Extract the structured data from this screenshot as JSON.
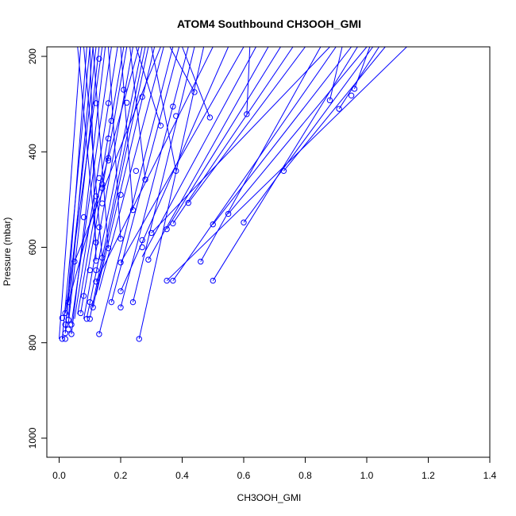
{
  "chart_data": {
    "type": "line",
    "title": "ATOM4 Southbound CH3OOH_GMI",
    "xlabel": "CH3OOH_GMI",
    "ylabel": "Pressure (mbar)",
    "xlim": [
      -0.04,
      1.4
    ],
    "ylim": [
      1040,
      180
    ],
    "y_reversed": true,
    "xticks": [
      "0.0",
      "0.2",
      "0.4",
      "0.6",
      "0.8",
      "1.0",
      "1.2",
      "1.4"
    ],
    "yticks": [
      "200",
      "400",
      "600",
      "800",
      "1000"
    ],
    "color": "#0000ff",
    "marker": "open-circle",
    "points": [
      [
        0.13,
        205
      ],
      [
        0.21,
        270
      ],
      [
        0.12,
        298
      ],
      [
        0.16,
        298
      ],
      [
        0.22,
        297
      ],
      [
        0.27,
        285
      ],
      [
        0.44,
        275
      ],
      [
        0.37,
        305
      ],
      [
        0.38,
        325
      ],
      [
        0.49,
        328
      ],
      [
        0.61,
        321
      ],
      [
        0.88,
        292
      ],
      [
        0.96,
        268
      ],
      [
        0.95,
        282
      ],
      [
        0.91,
        310
      ],
      [
        0.33,
        345
      ],
      [
        0.17,
        335
      ],
      [
        0.16,
        372
      ],
      [
        0.16,
        413
      ],
      [
        0.16,
        418
      ],
      [
        0.25,
        440
      ],
      [
        0.38,
        440
      ],
      [
        0.73,
        440
      ],
      [
        0.13,
        455
      ],
      [
        0.28,
        458
      ],
      [
        0.14,
        468
      ],
      [
        0.14,
        476
      ],
      [
        0.2,
        490
      ],
      [
        0.12,
        493
      ],
      [
        0.14,
        508
      ],
      [
        0.42,
        507
      ],
      [
        0.24,
        522
      ],
      [
        0.55,
        530
      ],
      [
        0.08,
        537
      ],
      [
        0.37,
        550
      ],
      [
        0.5,
        552
      ],
      [
        0.6,
        548
      ],
      [
        0.13,
        558
      ],
      [
        0.35,
        562
      ],
      [
        0.3,
        570
      ],
      [
        0.2,
        582
      ],
      [
        0.27,
        585
      ],
      [
        0.12,
        590
      ],
      [
        0.27,
        600
      ],
      [
        0.16,
        602
      ],
      [
        0.05,
        630
      ],
      [
        0.12,
        628
      ],
      [
        0.2,
        632
      ],
      [
        0.29,
        626
      ],
      [
        0.46,
        630
      ],
      [
        0.14,
        622
      ],
      [
        0.12,
        648
      ],
      [
        0.1,
        648
      ],
      [
        0.12,
        672
      ],
      [
        0.35,
        670
      ],
      [
        0.37,
        670
      ],
      [
        0.5,
        670
      ],
      [
        0.2,
        692
      ],
      [
        0.08,
        702
      ],
      [
        0.1,
        715
      ],
      [
        0.17,
        715
      ],
      [
        0.24,
        715
      ],
      [
        0.03,
        715
      ],
      [
        0.2,
        726
      ],
      [
        0.11,
        726
      ],
      [
        0.07,
        738
      ],
      [
        0.02,
        738
      ],
      [
        0.01,
        748
      ],
      [
        0.1,
        750
      ],
      [
        0.09,
        750
      ],
      [
        0.03,
        752
      ],
      [
        0.04,
        762
      ],
      [
        0.02,
        762
      ],
      [
        0.03,
        772
      ],
      [
        0.02,
        780
      ],
      [
        0.04,
        782
      ],
      [
        0.13,
        782
      ],
      [
        0.01,
        792
      ],
      [
        0.02,
        792
      ],
      [
        0.26,
        792
      ]
    ],
    "segments": [
      [
        [
          0.0,
          792
        ],
        [
          0.07,
          180
        ]
      ],
      [
        [
          0.01,
          792
        ],
        [
          0.1,
          180
        ]
      ],
      [
        [
          0.02,
          780
        ],
        [
          0.09,
          180
        ]
      ],
      [
        [
          0.02,
          770
        ],
        [
          0.12,
          180
        ]
      ],
      [
        [
          0.03,
          760
        ],
        [
          0.13,
          180
        ]
      ],
      [
        [
          0.03,
          748
        ],
        [
          0.11,
          180
        ]
      ],
      [
        [
          0.02,
          738
        ],
        [
          0.14,
          180
        ]
      ],
      [
        [
          0.04,
          782
        ],
        [
          0.15,
          180
        ]
      ],
      [
        [
          0.04,
          760
        ],
        [
          0.17,
          180
        ]
      ],
      [
        [
          0.05,
          750
        ],
        [
          0.19,
          180
        ]
      ],
      [
        [
          0.06,
          740
        ],
        [
          0.21,
          180
        ]
      ],
      [
        [
          0.07,
          738
        ],
        [
          0.22,
          180
        ]
      ],
      [
        [
          0.08,
          750
        ],
        [
          0.24,
          180
        ]
      ],
      [
        [
          0.03,
          715
        ],
        [
          0.26,
          180
        ]
      ],
      [
        [
          0.09,
          748
        ],
        [
          0.27,
          180
        ]
      ],
      [
        [
          0.1,
          748
        ],
        [
          0.28,
          180
        ]
      ],
      [
        [
          0.11,
          726
        ],
        [
          0.29,
          180
        ]
      ],
      [
        [
          0.12,
          700
        ],
        [
          0.31,
          180
        ]
      ],
      [
        [
          0.05,
          630
        ],
        [
          0.33,
          180
        ]
      ],
      [
        [
          0.13,
          690
        ],
        [
          0.34,
          180
        ]
      ],
      [
        [
          0.13,
          782
        ],
        [
          0.37,
          180
        ]
      ],
      [
        [
          0.17,
          715
        ],
        [
          0.39,
          180
        ]
      ],
      [
        [
          0.2,
          726
        ],
        [
          0.42,
          180
        ]
      ],
      [
        [
          0.24,
          715
        ],
        [
          0.44,
          180
        ]
      ],
      [
        [
          0.26,
          792
        ],
        [
          0.47,
          180
        ]
      ],
      [
        [
          0.12,
          672
        ],
        [
          0.5,
          180
        ]
      ],
      [
        [
          0.2,
          692
        ],
        [
          0.55,
          180
        ]
      ],
      [
        [
          0.2,
          632
        ],
        [
          0.6,
          180
        ]
      ],
      [
        [
          0.27,
          620
        ],
        [
          0.64,
          180
        ]
      ],
      [
        [
          0.29,
          626
        ],
        [
          0.68,
          180
        ]
      ],
      [
        [
          0.35,
          562
        ],
        [
          0.72,
          180
        ]
      ],
      [
        [
          0.37,
          550
        ],
        [
          0.76,
          180
        ]
      ],
      [
        [
          0.42,
          507
        ],
        [
          0.8,
          180
        ]
      ],
      [
        [
          0.46,
          630
        ],
        [
          0.85,
          180
        ]
      ],
      [
        [
          0.37,
          670
        ],
        [
          0.9,
          180
        ]
      ],
      [
        [
          0.5,
          670
        ],
        [
          0.97,
          180
        ]
      ],
      [
        [
          0.6,
          548
        ],
        [
          1.02,
          180
        ]
      ],
      [
        [
          0.73,
          440
        ],
        [
          1.06,
          180
        ]
      ],
      [
        [
          0.35,
          670
        ],
        [
          1.13,
          180
        ]
      ],
      [
        [
          0.55,
          530
        ],
        [
          1.0,
          180
        ]
      ],
      [
        [
          0.5,
          552
        ],
        [
          0.95,
          180
        ]
      ],
      [
        [
          0.3,
          570
        ],
        [
          0.88,
          180
        ]
      ],
      [
        [
          0.12,
          590
        ],
        [
          0.06,
          180
        ]
      ],
      [
        [
          0.14,
          622
        ],
        [
          0.08,
          180
        ]
      ],
      [
        [
          0.16,
          602
        ],
        [
          0.11,
          180
        ]
      ],
      [
        [
          0.12,
          628
        ],
        [
          0.1,
          180
        ]
      ],
      [
        [
          0.2,
          582
        ],
        [
          0.16,
          180
        ]
      ],
      [
        [
          0.24,
          522
        ],
        [
          0.2,
          180
        ]
      ],
      [
        [
          0.28,
          458
        ],
        [
          0.23,
          180
        ]
      ],
      [
        [
          0.38,
          440
        ],
        [
          0.3,
          180
        ]
      ],
      [
        [
          0.33,
          345
        ],
        [
          0.25,
          180
        ]
      ],
      [
        [
          0.44,
          275
        ],
        [
          0.36,
          180
        ]
      ],
      [
        [
          0.49,
          328
        ],
        [
          0.4,
          180
        ]
      ],
      [
        [
          0.61,
          321
        ],
        [
          0.62,
          180
        ]
      ],
      [
        [
          0.88,
          292
        ],
        [
          0.92,
          180
        ]
      ],
      [
        [
          0.96,
          268
        ],
        [
          1.01,
          180
        ]
      ],
      [
        [
          0.91,
          310
        ],
        [
          1.04,
          180
        ]
      ]
    ]
  }
}
